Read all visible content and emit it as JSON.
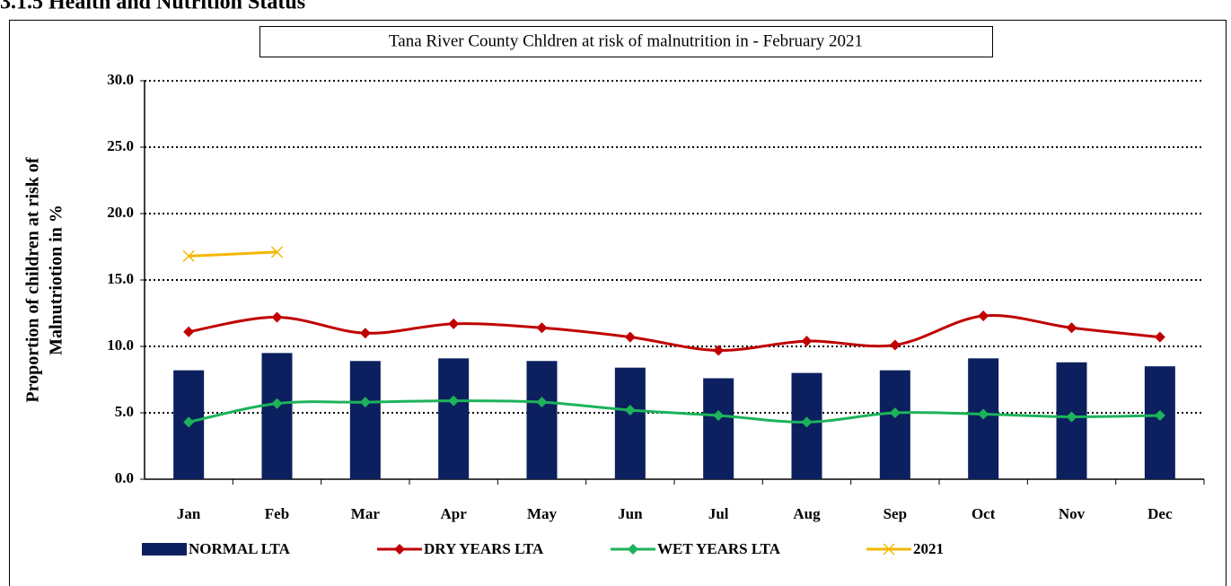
{
  "heading": "3.1.5 Health and Nutrition Status",
  "chart_data": {
    "type": "bar-line",
    "title": "Tana River County Chldren at risk of malnutrition in - February 2021",
    "ylabel": [
      "Proportion of children at risk of",
      "Malnutriotion in %"
    ],
    "categories": [
      "Jan",
      "Feb",
      "Mar",
      "Apr",
      "May",
      "Jun",
      "Jul",
      "Aug",
      "Sep",
      "Oct",
      "Nov",
      "Dec"
    ],
    "ylim": [
      0,
      30
    ],
    "yticks": [
      {
        "value": 0,
        "label": "0.0"
      },
      {
        "value": 5,
        "label": "5.0"
      },
      {
        "value": 10,
        "label": "10.0"
      },
      {
        "value": 15,
        "label": "15.0"
      },
      {
        "value": 20,
        "label": "20.0"
      },
      {
        "value": 25,
        "label": "25.0"
      },
      {
        "value": 30,
        "label": "30.0"
      }
    ],
    "grid": true,
    "series": [
      {
        "name": "NORMAL LTA",
        "kind": "bar",
        "color": "#0c1f5e",
        "values": [
          8.2,
          9.5,
          8.9,
          9.1,
          8.9,
          8.4,
          7.6,
          8.0,
          8.2,
          9.1,
          8.8,
          8.5
        ]
      },
      {
        "name": "DRY YEARS LTA",
        "kind": "line",
        "marker": "diamond",
        "color": "#c00000",
        "values": [
          11.1,
          12.2,
          11.0,
          11.7,
          11.4,
          10.7,
          9.7,
          10.4,
          10.1,
          12.3,
          11.4,
          10.7
        ]
      },
      {
        "name": "WET YEARS LTA",
        "kind": "line",
        "marker": "diamond",
        "color": "#1db35a",
        "values": [
          4.3,
          5.7,
          5.8,
          5.9,
          5.8,
          5.2,
          4.8,
          4.3,
          5.0,
          4.9,
          4.7,
          4.8
        ]
      },
      {
        "name": "2021",
        "kind": "line",
        "marker": "x",
        "color": "#f4b800",
        "values": [
          16.8,
          17.1,
          null,
          null,
          null,
          null,
          null,
          null,
          null,
          null,
          null,
          null
        ]
      }
    ]
  }
}
